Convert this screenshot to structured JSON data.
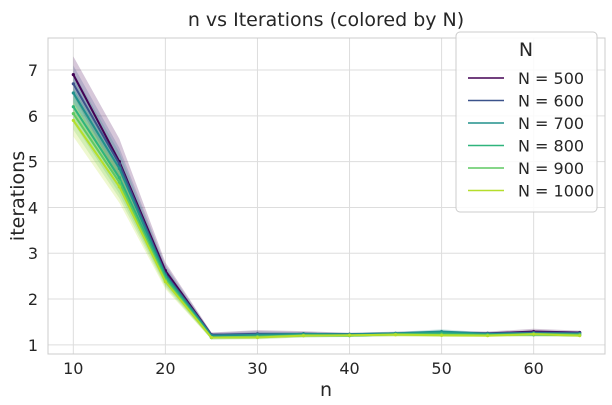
{
  "chart_data": {
    "type": "line",
    "title": "n vs Iterations (colored by N)",
    "xlabel": "n",
    "ylabel": "iterations",
    "xlim": [
      7.25,
      67.75
    ],
    "ylim": [
      0.8,
      7.7
    ],
    "xticks": [
      10,
      20,
      30,
      40,
      50,
      60
    ],
    "yticks": [
      1,
      2,
      3,
      4,
      5,
      6,
      7
    ],
    "grid": true,
    "legend": {
      "title": "N",
      "placement": "top-right"
    },
    "x": [
      10,
      15,
      20,
      25,
      30,
      35,
      40,
      45,
      50,
      55,
      60,
      65
    ],
    "series": [
      {
        "name": "N = 500",
        "color": "#440154",
        "values": [
          6.9,
          5.0,
          2.62,
          1.22,
          1.22,
          1.24,
          1.23,
          1.24,
          1.26,
          1.25,
          1.29,
          1.27
        ],
        "band": [
          [
            7.3,
            6.45
          ],
          [
            5.5,
            4.6
          ],
          [
            2.8,
            2.45
          ],
          [
            1.27,
            1.18
          ],
          [
            1.32,
            1.16
          ],
          [
            1.3,
            1.2
          ],
          [
            1.26,
            1.2
          ],
          [
            1.28,
            1.2
          ],
          [
            1.3,
            1.22
          ],
          [
            1.29,
            1.21
          ],
          [
            1.35,
            1.24
          ],
          [
            1.31,
            1.23
          ]
        ]
      },
      {
        "name": "N = 600",
        "color": "#3b528b",
        "values": [
          6.7,
          4.95,
          2.55,
          1.22,
          1.24,
          1.24,
          1.23,
          1.25,
          1.27,
          1.25,
          1.27,
          1.26
        ],
        "band": [
          [
            7.1,
            6.3
          ],
          [
            5.3,
            4.55
          ],
          [
            2.75,
            2.4
          ],
          [
            1.26,
            1.18
          ],
          [
            1.3,
            1.19
          ],
          [
            1.28,
            1.2
          ],
          [
            1.26,
            1.2
          ],
          [
            1.29,
            1.21
          ],
          [
            1.31,
            1.23
          ],
          [
            1.28,
            1.22
          ],
          [
            1.31,
            1.23
          ],
          [
            1.29,
            1.22
          ]
        ]
      },
      {
        "name": "N = 700",
        "color": "#21918c",
        "values": [
          6.5,
          4.85,
          2.52,
          1.2,
          1.22,
          1.24,
          1.23,
          1.25,
          1.29,
          1.24,
          1.25,
          1.24
        ],
        "band": [
          [
            6.95,
            6.1
          ],
          [
            5.2,
            4.5
          ],
          [
            2.7,
            2.36
          ],
          [
            1.24,
            1.16
          ],
          [
            1.27,
            1.18
          ],
          [
            1.27,
            1.2
          ],
          [
            1.26,
            1.2
          ],
          [
            1.28,
            1.22
          ],
          [
            1.34,
            1.24
          ],
          [
            1.27,
            1.21
          ],
          [
            1.28,
            1.22
          ],
          [
            1.27,
            1.21
          ]
        ]
      },
      {
        "name": "N = 800",
        "color": "#2fb47c",
        "values": [
          6.2,
          4.65,
          2.48,
          1.16,
          1.17,
          1.2,
          1.2,
          1.23,
          1.25,
          1.22,
          1.22,
          1.21
        ],
        "band": [
          [
            6.6,
            5.85
          ],
          [
            5.0,
            4.3
          ],
          [
            2.65,
            2.3
          ],
          [
            1.2,
            1.12
          ],
          [
            1.21,
            1.13
          ],
          [
            1.24,
            1.16
          ],
          [
            1.23,
            1.17
          ],
          [
            1.27,
            1.19
          ],
          [
            1.29,
            1.21
          ],
          [
            1.25,
            1.19
          ],
          [
            1.26,
            1.18
          ],
          [
            1.24,
            1.18
          ]
        ]
      },
      {
        "name": "N = 900",
        "color": "#5ec962",
        "values": [
          6.05,
          4.55,
          2.42,
          1.16,
          1.18,
          1.21,
          1.2,
          1.23,
          1.22,
          1.21,
          1.24,
          1.22
        ],
        "band": [
          [
            6.45,
            5.7
          ],
          [
            4.9,
            4.2
          ],
          [
            2.6,
            2.26
          ],
          [
            1.2,
            1.12
          ],
          [
            1.22,
            1.14
          ],
          [
            1.25,
            1.17
          ],
          [
            1.23,
            1.17
          ],
          [
            1.27,
            1.19
          ],
          [
            1.26,
            1.18
          ],
          [
            1.24,
            1.18
          ],
          [
            1.28,
            1.2
          ],
          [
            1.25,
            1.19
          ]
        ]
      },
      {
        "name": "N = 1000",
        "color": "#b5de2b",
        "values": [
          5.9,
          4.45,
          2.38,
          1.16,
          1.16,
          1.2,
          1.21,
          1.22,
          1.21,
          1.2,
          1.23,
          1.2
        ],
        "band": [
          [
            6.3,
            5.55
          ],
          [
            4.8,
            4.1
          ],
          [
            2.55,
            2.22
          ],
          [
            1.2,
            1.12
          ],
          [
            1.2,
            1.12
          ],
          [
            1.24,
            1.16
          ],
          [
            1.24,
            1.18
          ],
          [
            1.26,
            1.18
          ],
          [
            1.25,
            1.17
          ],
          [
            1.23,
            1.17
          ],
          [
            1.27,
            1.19
          ],
          [
            1.23,
            1.17
          ]
        ]
      }
    ]
  }
}
